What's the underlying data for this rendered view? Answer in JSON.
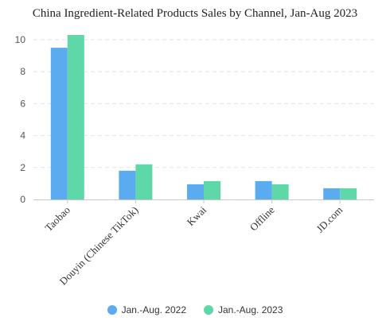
{
  "chart_data": {
    "type": "bar",
    "title": "China Ingredient-Related Products Sales by Channel, Jan-Aug 2023",
    "categories": [
      "Taobao",
      "Douyin (Chinese TikTok)",
      "Kwai",
      "Offline",
      "JD.com"
    ],
    "series": [
      {
        "name": "Jan.-Aug. 2022",
        "values": [
          9.5,
          1.8,
          0.95,
          1.15,
          0.7
        ],
        "color": "#5aabf0"
      },
      {
        "name": "Jan.-Aug. 2023",
        "values": [
          10.3,
          2.2,
          1.15,
          0.95,
          0.7
        ],
        "color": "#5ed8a8"
      }
    ],
    "ylim": [
      0,
      10.6
    ],
    "yticks": [
      0,
      2,
      4,
      6,
      8,
      10
    ],
    "grid": true,
    "legend_position": "bottom-center"
  }
}
